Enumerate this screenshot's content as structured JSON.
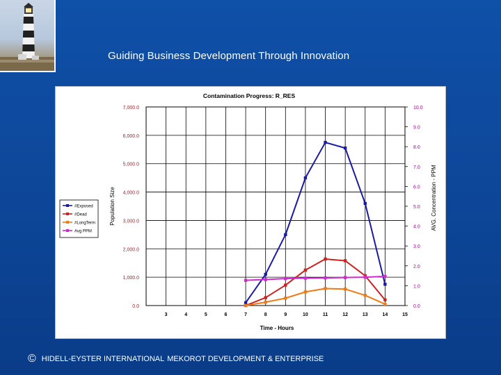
{
  "header": {
    "tagline": "Guiding Business Development Through Innovation",
    "logo_icon": "lighthouse-icon"
  },
  "footer": {
    "copyright_symbol": "©",
    "company_left": "HIDELL-EYSTER INTERNATIONAL",
    "company_right": "MEKOROT DEVELOPMENT & ENTERPRISE"
  },
  "chart_data": {
    "type": "line",
    "title": "Contamination Progress: R_RES",
    "xlabel": "Time - Hours",
    "ylabel": "Population Size",
    "y2label": "AVG. Concentration - PPM",
    "x_ticks": [
      "3",
      "4",
      "5",
      "6",
      "7",
      "8",
      "9",
      "10",
      "11",
      "12",
      "13",
      "14",
      "15"
    ],
    "xlim": [
      2,
      15
    ],
    "ylim": [
      0,
      7000
    ],
    "y_ticks": [
      "0.0",
      "1,000.0",
      "2,000.0",
      "3,000.0",
      "4,000.0",
      "5,000.0",
      "6,000.0",
      "7,000.0"
    ],
    "y2lim": [
      0,
      10
    ],
    "y2_ticks": [
      "0.0",
      "1.0",
      "2.0",
      "3.0",
      "4.0",
      "5.0",
      "6.0",
      "7.0",
      "8.0",
      "9.0",
      "10.0"
    ],
    "grid": "vertical and horizontal",
    "legend_position": "left",
    "colors": {
      "exposed": "#1a1aa8",
      "dead": "#d02020",
      "longterm": "#f07b16",
      "ppm": "#d02ad0",
      "y2_axis": "#a0108f",
      "y_axis": "#c4141c"
    },
    "series": [
      {
        "name": "#Exposed",
        "axis": "left",
        "x": [
          7,
          8,
          9,
          10,
          11,
          12,
          13,
          14
        ],
        "values": [
          100,
          1100,
          2500,
          4500,
          5750,
          5550,
          3600,
          750
        ]
      },
      {
        "name": "#Dead",
        "axis": "left",
        "x": [
          7,
          8,
          9,
          10,
          11,
          12,
          13,
          14
        ],
        "values": [
          0,
          280,
          720,
          1250,
          1640,
          1580,
          1050,
          200
        ]
      },
      {
        "name": "#LongTerm",
        "axis": "left",
        "x": [
          7,
          8,
          9,
          10,
          11,
          12,
          13,
          14
        ],
        "values": [
          0,
          120,
          260,
          480,
          600,
          580,
          360,
          50
        ]
      },
      {
        "name": "Avg PPM",
        "axis": "right",
        "x": [
          7,
          8,
          9,
          10,
          11,
          12,
          13,
          14
        ],
        "values": [
          1.27,
          1.31,
          1.36,
          1.38,
          1.39,
          1.41,
          1.43,
          1.47
        ]
      }
    ]
  }
}
